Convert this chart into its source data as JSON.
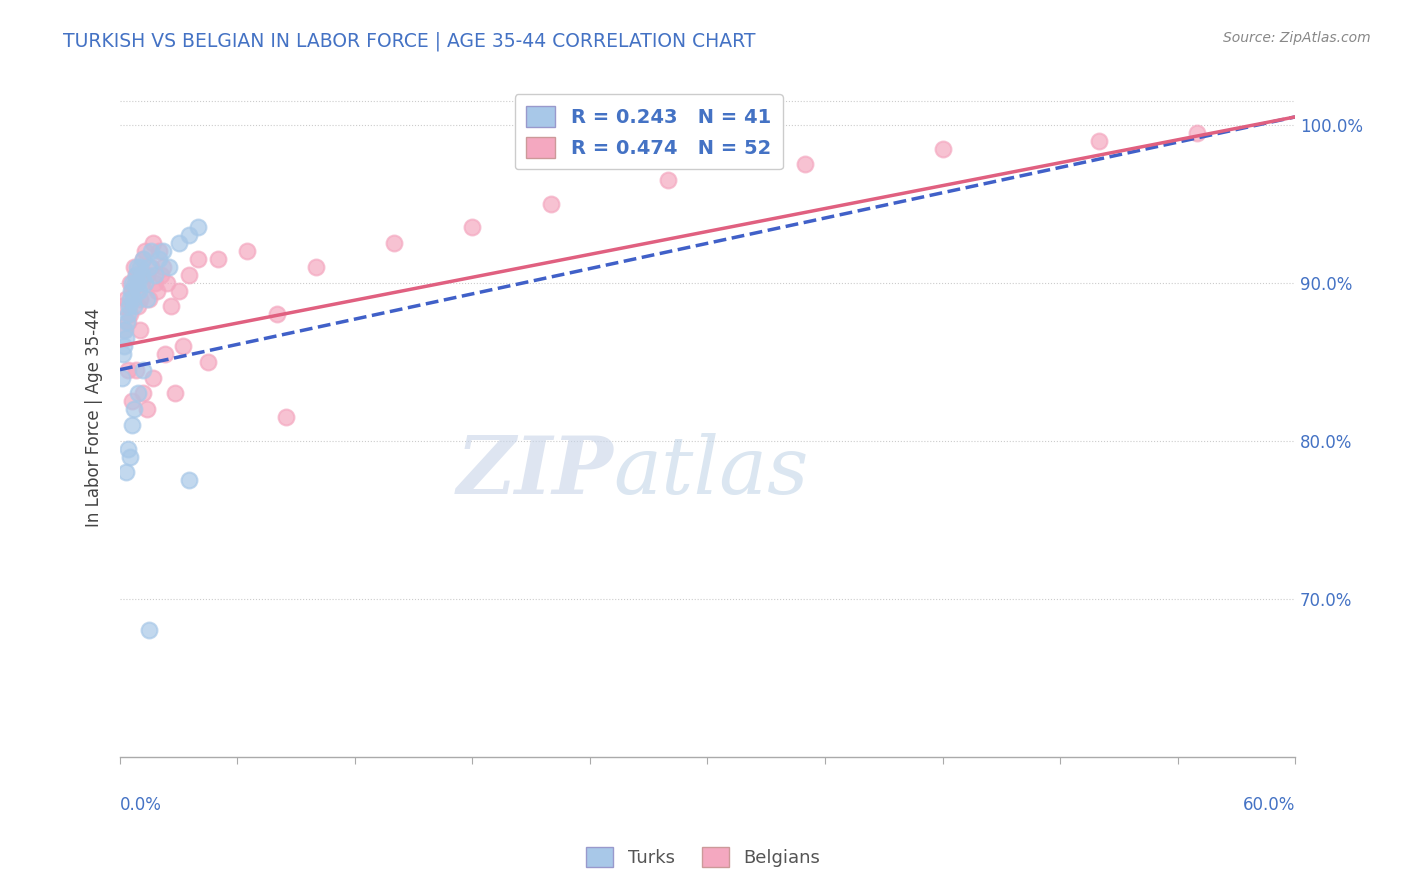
{
  "title": "TURKISH VS BELGIAN IN LABOR FORCE | AGE 35-44 CORRELATION CHART",
  "source": "Source: ZipAtlas.com",
  "ylabel": "In Labor Force | Age 35-44",
  "xlim": [
    0.0,
    60.0
  ],
  "ylim": [
    60.0,
    103.0
  ],
  "ytick_vals": [
    70,
    80,
    90,
    100
  ],
  "ytick_labels": [
    "70.0%",
    "80.0%",
    "90.0%",
    "100.0%"
  ],
  "turks_label": "Turks",
  "belgians_label": "Belgians",
  "blue_color": "#a8c8e8",
  "pink_color": "#f4a8c0",
  "blue_line_color": "#4060c8",
  "pink_line_color": "#e06080",
  "watermark_zip": "ZIP",
  "watermark_atlas": "atlas",
  "turks_x": [
    0.1,
    0.15,
    0.2,
    0.25,
    0.3,
    0.35,
    0.4,
    0.45,
    0.5,
    0.55,
    0.6,
    0.65,
    0.7,
    0.75,
    0.8,
    0.85,
    0.9,
    0.95,
    1.0,
    1.1,
    1.2,
    1.3,
    1.4,
    1.5,
    1.6,
    1.8,
    2.0,
    2.2,
    2.5,
    3.0,
    3.5,
    4.0,
    0.3,
    0.4,
    0.5,
    0.6,
    0.7,
    0.9,
    1.2,
    3.5,
    1.5
  ],
  "turks_y": [
    84.0,
    85.5,
    86.0,
    87.0,
    86.5,
    87.5,
    88.0,
    88.5,
    89.0,
    89.5,
    90.0,
    89.0,
    88.5,
    90.0,
    90.5,
    91.0,
    90.0,
    89.5,
    91.0,
    90.5,
    91.5,
    90.0,
    89.0,
    91.0,
    92.0,
    90.5,
    91.5,
    92.0,
    91.0,
    92.5,
    93.0,
    93.5,
    78.0,
    79.5,
    79.0,
    81.0,
    82.0,
    83.0,
    84.5,
    77.5,
    68.0
  ],
  "belgians_x": [
    0.1,
    0.2,
    0.3,
    0.4,
    0.5,
    0.5,
    0.6,
    0.7,
    0.8,
    0.9,
    1.0,
    1.0,
    1.1,
    1.2,
    1.3,
    1.4,
    1.5,
    1.6,
    1.7,
    1.8,
    1.9,
    2.0,
    2.1,
    2.2,
    2.4,
    2.6,
    2.8,
    3.0,
    3.5,
    4.0,
    5.0,
    6.5,
    8.0,
    10.0,
    14.0,
    18.0,
    22.0,
    28.0,
    35.0,
    42.0,
    50.0,
    55.0,
    0.4,
    0.6,
    0.8,
    1.2,
    1.4,
    1.7,
    2.3,
    3.2,
    4.5,
    8.5
  ],
  "belgians_y": [
    88.5,
    87.0,
    89.0,
    87.5,
    90.0,
    88.0,
    89.5,
    91.0,
    90.5,
    88.5,
    89.0,
    87.0,
    90.0,
    91.5,
    92.0,
    90.5,
    89.0,
    91.0,
    92.5,
    90.0,
    89.5,
    92.0,
    90.5,
    91.0,
    90.0,
    88.5,
    83.0,
    89.5,
    90.5,
    91.5,
    91.5,
    92.0,
    88.0,
    91.0,
    92.5,
    93.5,
    95.0,
    96.5,
    97.5,
    98.5,
    99.0,
    99.5,
    84.5,
    82.5,
    84.5,
    83.0,
    82.0,
    84.0,
    85.5,
    86.0,
    85.0,
    81.5
  ],
  "blue_line_x0": 0.0,
  "blue_line_y0": 84.5,
  "blue_line_x1": 60.0,
  "blue_line_y1": 100.5,
  "pink_line_x0": 0.0,
  "pink_line_y0": 86.0,
  "pink_line_x1": 60.0,
  "pink_line_y1": 100.5
}
